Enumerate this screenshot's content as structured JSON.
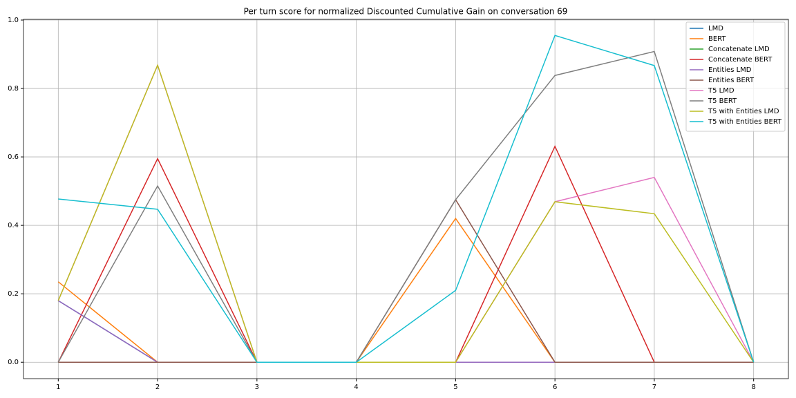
{
  "chart_data": {
    "type": "line",
    "title": "Per turn score for normalized Discounted Cumulative Gain on conversation 69",
    "x": [
      1,
      2,
      3,
      4,
      5,
      6,
      7,
      8
    ],
    "series": [
      {
        "name": "LMD",
        "color": "#1f77b4",
        "values": [
          0.18,
          0,
          0,
          0,
          0,
          0,
          0,
          0
        ]
      },
      {
        "name": "BERT",
        "color": "#ff7f0e",
        "values": [
          0.235,
          0,
          0,
          0,
          0.42,
          0,
          0,
          0
        ]
      },
      {
        "name": "Concatenate LMD",
        "color": "#2ca02c",
        "values": [
          0,
          0,
          0,
          0,
          0,
          0,
          0,
          0
        ]
      },
      {
        "name": "Concatenate BERT",
        "color": "#d62728",
        "values": [
          0,
          0.595,
          0,
          0,
          0,
          0.631,
          0,
          0
        ]
      },
      {
        "name": "Entities LMD",
        "color": "#9467bd",
        "values": [
          0.18,
          0,
          0,
          0,
          0,
          0,
          0,
          0
        ]
      },
      {
        "name": "Entities BERT",
        "color": "#8c564b",
        "values": [
          0,
          0,
          0,
          0,
          0.475,
          0,
          0,
          0
        ]
      },
      {
        "name": "T5 LMD",
        "color": "#e377c2",
        "values": [
          0.18,
          0.868,
          0,
          0,
          0,
          0.469,
          0.54,
          0
        ]
      },
      {
        "name": "T5 BERT",
        "color": "#7f7f7f",
        "values": [
          0,
          0.515,
          0,
          0,
          0.475,
          0.838,
          0.908,
          0
        ]
      },
      {
        "name": "T5 with Entities LMD",
        "color": "#bcbd22",
        "values": [
          0.18,
          0.868,
          0,
          0,
          0,
          0.469,
          0.434,
          0
        ]
      },
      {
        "name": "T5 with Entities BERT",
        "color": "#17becf",
        "values": [
          0.477,
          0.447,
          0,
          0,
          0.21,
          0.955,
          0.867,
          0
        ]
      }
    ],
    "xlim": [
      0.65,
      8.35
    ],
    "ylim": [
      -0.048,
      1.002
    ],
    "xticks": [
      1,
      2,
      3,
      4,
      5,
      6,
      7,
      8
    ],
    "yticks": [
      {
        "value": 0,
        "label": "0.0"
      },
      {
        "value": 0.2,
        "label": "0.2"
      },
      {
        "value": 0.4,
        "label": "0.4"
      },
      {
        "value": 0.6,
        "label": "0.6"
      },
      {
        "value": 0.8,
        "label": "0.8"
      },
      {
        "value": 1,
        "label": "1.0"
      }
    ],
    "grid": true,
    "legend": "upper-right"
  }
}
